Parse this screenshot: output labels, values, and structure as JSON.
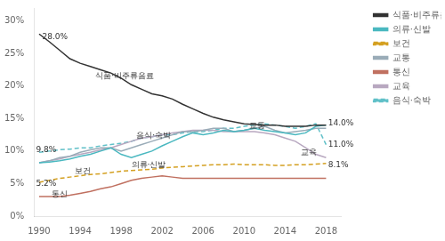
{
  "chart_data": {
    "type": "line",
    "x": [
      1990,
      1991,
      1992,
      1993,
      1994,
      1995,
      1996,
      1997,
      1998,
      1999,
      2000,
      2001,
      2002,
      2003,
      2004,
      2005,
      2006,
      2007,
      2008,
      2009,
      2010,
      2011,
      2012,
      2013,
      2014,
      2015,
      2016,
      2017,
      2018
    ],
    "xlim": [
      1989.5,
      2019.5
    ],
    "xticks": [
      1990,
      1994,
      1998,
      2002,
      2006,
      2010,
      2014,
      2018
    ],
    "ylim": [
      0,
      32
    ],
    "yticks": [
      {
        "value": 0,
        "label": "0%"
      },
      {
        "value": 5,
        "label": "5%"
      },
      {
        "value": 10,
        "label": "10%"
      },
      {
        "value": 15,
        "label": "15%"
      },
      {
        "value": 20,
        "label": "20%"
      },
      {
        "value": 25,
        "label": "25%"
      },
      {
        "value": 30,
        "label": "30%"
      }
    ],
    "grid": false,
    "legend": "upper right",
    "series": [
      {
        "name": "식품·비주류음료",
        "color": "#333333",
        "line_style": "solid",
        "values": [
          28.0,
          26.8,
          25.5,
          24.2,
          23.5,
          23.0,
          22.5,
          22.0,
          21.2,
          20.2,
          19.5,
          18.8,
          18.5,
          18.0,
          17.2,
          16.5,
          15.8,
          15.2,
          14.8,
          14.5,
          14.2,
          14.1,
          14.0,
          14.0,
          13.8,
          13.8,
          13.8,
          14.0,
          14.0
        ]
      },
      {
        "name": "의류·신발",
        "color": "#4ab8c0",
        "line_style": "solid",
        "values": [
          8.2,
          8.3,
          8.5,
          8.8,
          9.2,
          9.5,
          10.0,
          10.5,
          9.5,
          9.0,
          9.5,
          10.0,
          10.8,
          11.5,
          12.2,
          12.8,
          12.5,
          12.8,
          13.2,
          13.0,
          13.2,
          13.5,
          13.2,
          13.0,
          12.8,
          12.5,
          12.8,
          13.8,
          14.0
        ]
      },
      {
        "name": "보건",
        "color": "#d4a021",
        "line_style": "dashed",
        "values": [
          5.2,
          5.5,
          5.8,
          6.0,
          6.2,
          6.4,
          6.5,
          6.7,
          6.9,
          7.0,
          7.1,
          7.2,
          7.4,
          7.5,
          7.6,
          7.7,
          7.8,
          7.9,
          7.9,
          8.0,
          7.9,
          7.9,
          7.9,
          7.8,
          7.8,
          7.9,
          7.9,
          8.0,
          8.1
        ]
      },
      {
        "name": "교통",
        "color": "#9aacb8",
        "line_style": "solid",
        "values": [
          8.2,
          8.5,
          9.0,
          9.2,
          9.8,
          10.2,
          10.5,
          10.5,
          10.0,
          10.5,
          11.0,
          11.5,
          12.0,
          12.5,
          13.0,
          13.0,
          13.2,
          13.5,
          13.5,
          13.0,
          13.2,
          13.5,
          13.8,
          13.2,
          12.8,
          13.0,
          13.2,
          13.5,
          13.5
        ]
      },
      {
        "name": "통신",
        "color": "#c07060",
        "line_style": "solid",
        "values": [
          3.0,
          3.0,
          3.0,
          3.2,
          3.5,
          3.8,
          4.2,
          4.5,
          5.0,
          5.5,
          5.8,
          6.0,
          6.2,
          6.0,
          5.8,
          5.8,
          5.8,
          5.8,
          5.8,
          5.8,
          5.8,
          5.8,
          5.8,
          5.8,
          5.8,
          5.8,
          5.8,
          5.8,
          5.8
        ]
      },
      {
        "name": "교육",
        "color": "#b8a8c0",
        "line_style": "solid",
        "values": [
          8.2,
          8.5,
          8.8,
          9.2,
          9.5,
          9.8,
          10.2,
          10.5,
          11.0,
          11.5,
          12.0,
          12.2,
          12.5,
          12.8,
          13.0,
          13.2,
          13.2,
          13.2,
          13.0,
          13.0,
          13.0,
          13.0,
          12.8,
          12.5,
          12.0,
          11.5,
          10.5,
          9.5,
          9.0
        ]
      },
      {
        "name": "음식·숙박",
        "color": "#60c0c8",
        "line_style": "dashed",
        "values": [
          9.8,
          10.0,
          10.2,
          10.3,
          10.5,
          10.5,
          10.8,
          11.0,
          11.2,
          11.5,
          12.0,
          12.2,
          12.5,
          12.5,
          12.8,
          13.0,
          13.0,
          13.2,
          13.5,
          13.5,
          13.8,
          14.0,
          14.2,
          14.0,
          13.8,
          13.5,
          13.8,
          14.2,
          11.0
        ]
      }
    ],
    "annotations": [
      {
        "text": "28.0%",
        "x": 1990.3,
        "y": 27.5
      },
      {
        "text": "9.8%",
        "x": 1989.7,
        "y": 10.2
      },
      {
        "text": "5.2%",
        "x": 1989.7,
        "y": 5.0
      },
      {
        "text": "식품·비주류음료",
        "x": 1995.5,
        "y": 21.5
      },
      {
        "text": "음식·숙박",
        "x": 1999.5,
        "y": 12.3
      },
      {
        "text": "보건",
        "x": 1993.5,
        "y": 6.9
      },
      {
        "text": "의류·신발",
        "x": 1999.0,
        "y": 7.8
      },
      {
        "text": "통신",
        "x": 1991.2,
        "y": 3.3
      },
      {
        "text": "14.0%",
        "x": 2018.2,
        "y": 14.3
      },
      {
        "text": "11.0%",
        "x": 2018.2,
        "y": 11.0
      },
      {
        "text": "8.1%",
        "x": 2018.2,
        "y": 7.9
      },
      {
        "text": "교통",
        "x": 2010.5,
        "y": 13.8
      },
      {
        "text": "교육",
        "x": 2015.5,
        "y": 9.8
      }
    ]
  }
}
